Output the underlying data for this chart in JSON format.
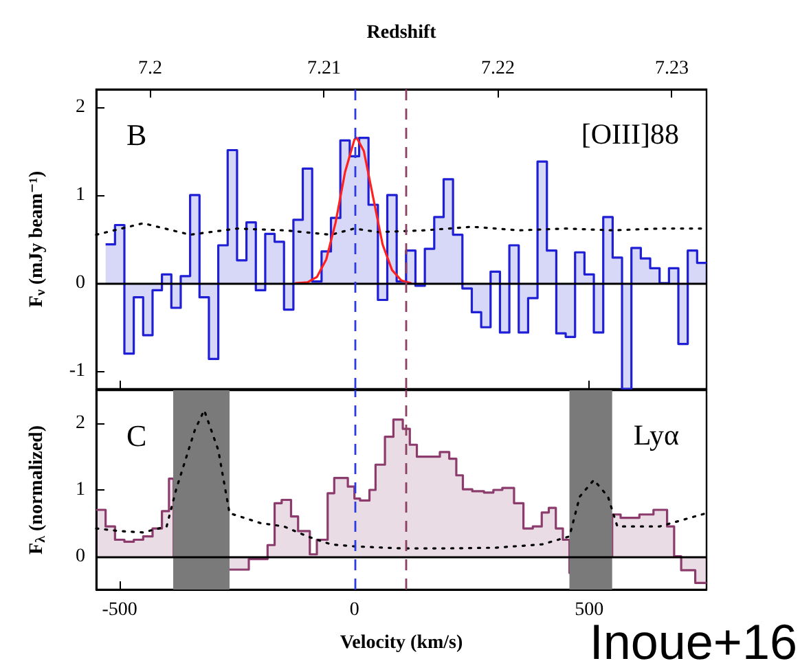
{
  "chart_data": [
    {
      "type": "step",
      "x2label": "Redshift",
      "ylabel": "F$_{ν}$ (mJy beam⁻¹)",
      "annotations": [
        "B",
        "[OIII]88"
      ],
      "xlim": [
        -550,
        750
      ],
      "xticks": [
        {
          "value": -500,
          "label": null
        },
        {
          "value": 0,
          "label": null
        },
        {
          "value": 500,
          "label": null
        }
      ],
      "x2lim": [
        7.1969,
        7.232
      ],
      "x2ticks": [
        7.2,
        7.21,
        7.22,
        7.23
      ],
      "ylim": [
        -1.2,
        2.2
      ],
      "yticks": [
        -1,
        0,
        1,
        2
      ],
      "tick_labels": "y",
      "marker": "none",
      "series": [
        {
          "color": "#1f1fd6",
          "x": [
            -530,
            -510,
            -490,
            -470,
            -450,
            -430,
            -410,
            -390,
            -370,
            -350,
            -330,
            -310,
            -290,
            -270,
            -250,
            -230,
            -210,
            -190,
            -170,
            -150,
            -130,
            -110,
            -90,
            -70,
            -50,
            -30,
            -10,
            10,
            30,
            50,
            70,
            90,
            110,
            130,
            150,
            170,
            190,
            210,
            230,
            250,
            270,
            290,
            310,
            330,
            350,
            370,
            390,
            410,
            430,
            450,
            470,
            490,
            510,
            530,
            550,
            570,
            590,
            610,
            630,
            650,
            670,
            690,
            710,
            730,
            750
          ],
          "values": [
            0.44,
            0.66,
            -0.8,
            -0.16,
            -0.59,
            -0.08,
            0.1,
            -0.28,
            0.08,
            1.0,
            -0.16,
            -0.86,
            0.43,
            1.51,
            0.26,
            0.69,
            -0.08,
            0.56,
            0.47,
            -0.3,
            0.72,
            1.3,
            0.02,
            0.36,
            0.74,
            1.62,
            1.44,
            1.65,
            0.89,
            -0.19,
            1.0,
            0.02,
            0.37,
            -0.03,
            0.39,
            0.75,
            1.18,
            0.55,
            -0.06,
            -0.33,
            -0.5,
            0.13,
            -0.56,
            0.43,
            -0.56,
            -0.17,
            1.38,
            0.37,
            -0.57,
            -0.61,
            0.35,
            0.1,
            -0.56,
            0.75,
            0.29,
            -1.2,
            0.4,
            0.28,
            0.17,
            0,
            0.17,
            -0.69,
            0.37,
            0.23,
            0.23
          ]
        },
        {
          "type": "line",
          "color": "#000000",
          "line_style": "dotted",
          "x": [
            -550,
            -450,
            -350,
            -250,
            -150,
            -50,
            0,
            50,
            150,
            250,
            350,
            450,
            550,
            650,
            750
          ],
          "values": [
            0.55,
            0.68,
            0.55,
            0.62,
            0.6,
            0.55,
            0.62,
            0.58,
            0.6,
            0.64,
            0.6,
            0.62,
            0.6,
            0.62,
            0.62
          ]
        },
        {
          "type": "line",
          "color": "#ff2020",
          "line_style": "solid",
          "x": [
            -125,
            -100,
            -80,
            -60,
            -40,
            -20,
            0,
            5,
            20,
            40,
            60,
            80,
            100,
            120
          ],
          "values": [
            0,
            0.01,
            0.07,
            0.27,
            0.69,
            1.26,
            1.63,
            1.65,
            1.5,
            0.97,
            0.44,
            0.15,
            0.03,
            0
          ]
        }
      ],
      "ref_lines": [
        {
          "axis": "y",
          "value": 0,
          "color": "#000000",
          "line_style": "solid"
        },
        {
          "axis": "x",
          "value": 0,
          "color": "#2a3ce0",
          "line_style": "dashed"
        },
        {
          "axis": "x",
          "value": 110,
          "color": "#8b4063",
          "line_style": "dashed"
        }
      ]
    },
    {
      "type": "step",
      "xlabel": "Velocity (km/s)",
      "ylabel": "F$_{λ}$ (normalized)",
      "annotations": [
        "C",
        "Lyα",
        "Inoue+16"
      ],
      "xlim": [
        -550,
        750
      ],
      "xticks": [
        -500,
        0,
        500
      ],
      "ylim": [
        -0.5,
        2.5
      ],
      "yticks": [
        0,
        1,
        2
      ],
      "marker": "none",
      "series": [
        {
          "color": "#8c3c6c",
          "x": [
            -550,
            -530,
            -510,
            -490,
            -470,
            -450,
            -430,
            -410,
            -395,
            -385,
            -270,
            -225,
            -185,
            -170,
            -155,
            -135,
            -120,
            -95,
            -80,
            -57,
            -43,
            -14,
            0,
            12,
            32,
            45,
            65,
            83,
            103,
            118,
            133,
            182,
            202,
            217,
            231,
            251,
            276,
            296,
            315,
            340,
            360,
            380,
            399,
            414,
            429,
            444,
            458,
            465,
            549,
            567,
            607,
            637,
            666,
            681,
            696,
            726,
            750
          ],
          "values": [
            0.7,
            0.45,
            0.25,
            0.22,
            0.25,
            0.3,
            0.42,
            0.68,
            1.17,
            0,
            -0.2,
            -0.04,
            0.17,
            0.8,
            0.85,
            0.6,
            0.38,
            0.03,
            0.25,
            0.95,
            1.18,
            1.05,
            0.87,
            0.84,
            1.0,
            1.38,
            1.8,
            2.06,
            1.92,
            1.68,
            1.5,
            1.57,
            1.47,
            1.22,
            1.01,
            0.98,
            0.96,
            1.0,
            1.03,
            0.8,
            0.42,
            0.45,
            0.66,
            0.73,
            0.42,
            0.25,
            -0.25,
            0,
            0.63,
            0.58,
            0.63,
            0.7,
            0.45,
            0,
            -0.21,
            -0.4,
            -0.4
          ]
        },
        {
          "type": "line",
          "color": "#000000",
          "line_style": "dotted",
          "x": [
            -550,
            -500,
            -450,
            -400,
            -380,
            -340,
            -320,
            -290,
            -266,
            -200,
            -150,
            -100,
            -50,
            0,
            100,
            200,
            300,
            400,
            458,
            480,
            510,
            540,
            560,
            650,
            750
          ],
          "values": [
            0.42,
            0.38,
            0.36,
            0.45,
            1.0,
            1.9,
            2.2,
            1.6,
            0.65,
            0.5,
            0.45,
            0.3,
            0.18,
            0.15,
            0.12,
            0.12,
            0.13,
            0.18,
            0.3,
            0.9,
            1.15,
            0.9,
            0.45,
            0.45,
            0.65
          ]
        }
      ],
      "bands": [
        {
          "axis": "x",
          "from": -386,
          "to": -266,
          "color": "#7a7a7a"
        },
        {
          "axis": "x",
          "from": 458,
          "to": 549,
          "color": "#7a7a7a"
        }
      ],
      "ref_lines": [
        {
          "axis": "y",
          "value": 0,
          "color": "#000000",
          "line_style": "solid"
        },
        {
          "axis": "x",
          "value": 0,
          "color": "#2a3ce0",
          "line_style": "dashed"
        },
        {
          "axis": "x",
          "value": 110,
          "color": "#8b4063",
          "line_style": "dashed"
        }
      ]
    }
  ]
}
